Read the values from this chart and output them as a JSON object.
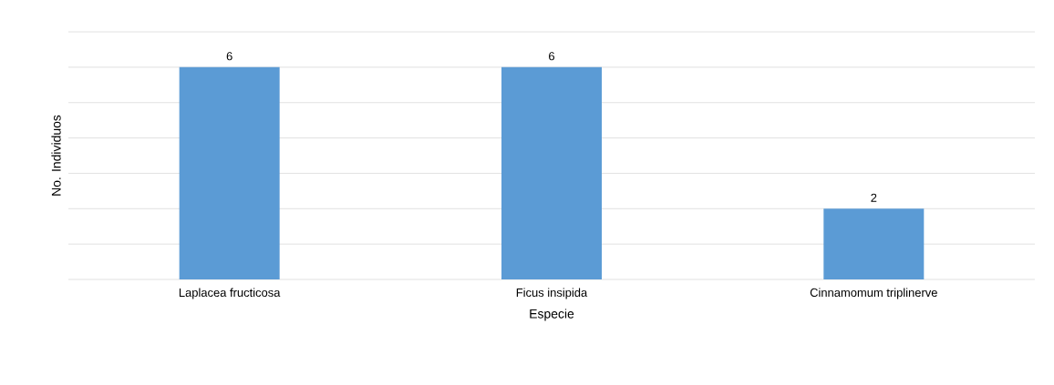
{
  "chart_data": {
    "type": "bar",
    "xlabel": "Especie",
    "ylabel": "No. Individuos",
    "categories": [
      "Laplacea fructicosa",
      "Ficus insipida",
      "Cinnamomum triplinerve"
    ],
    "values": [
      6,
      6,
      2
    ],
    "color": "#5b9bd5",
    "data_labels": true,
    "ylim": [
      0,
      7
    ],
    "yticks": [
      {
        "value": 0,
        "label": null
      },
      {
        "value": 1,
        "label": null
      },
      {
        "value": 2,
        "label": null
      },
      {
        "value": 3,
        "label": null
      },
      {
        "value": 4,
        "label": null
      },
      {
        "value": 5,
        "label": null
      },
      {
        "value": 6,
        "label": null
      },
      {
        "value": 7,
        "label": null
      }
    ],
    "grid": "y",
    "tick_labels": "x"
  }
}
